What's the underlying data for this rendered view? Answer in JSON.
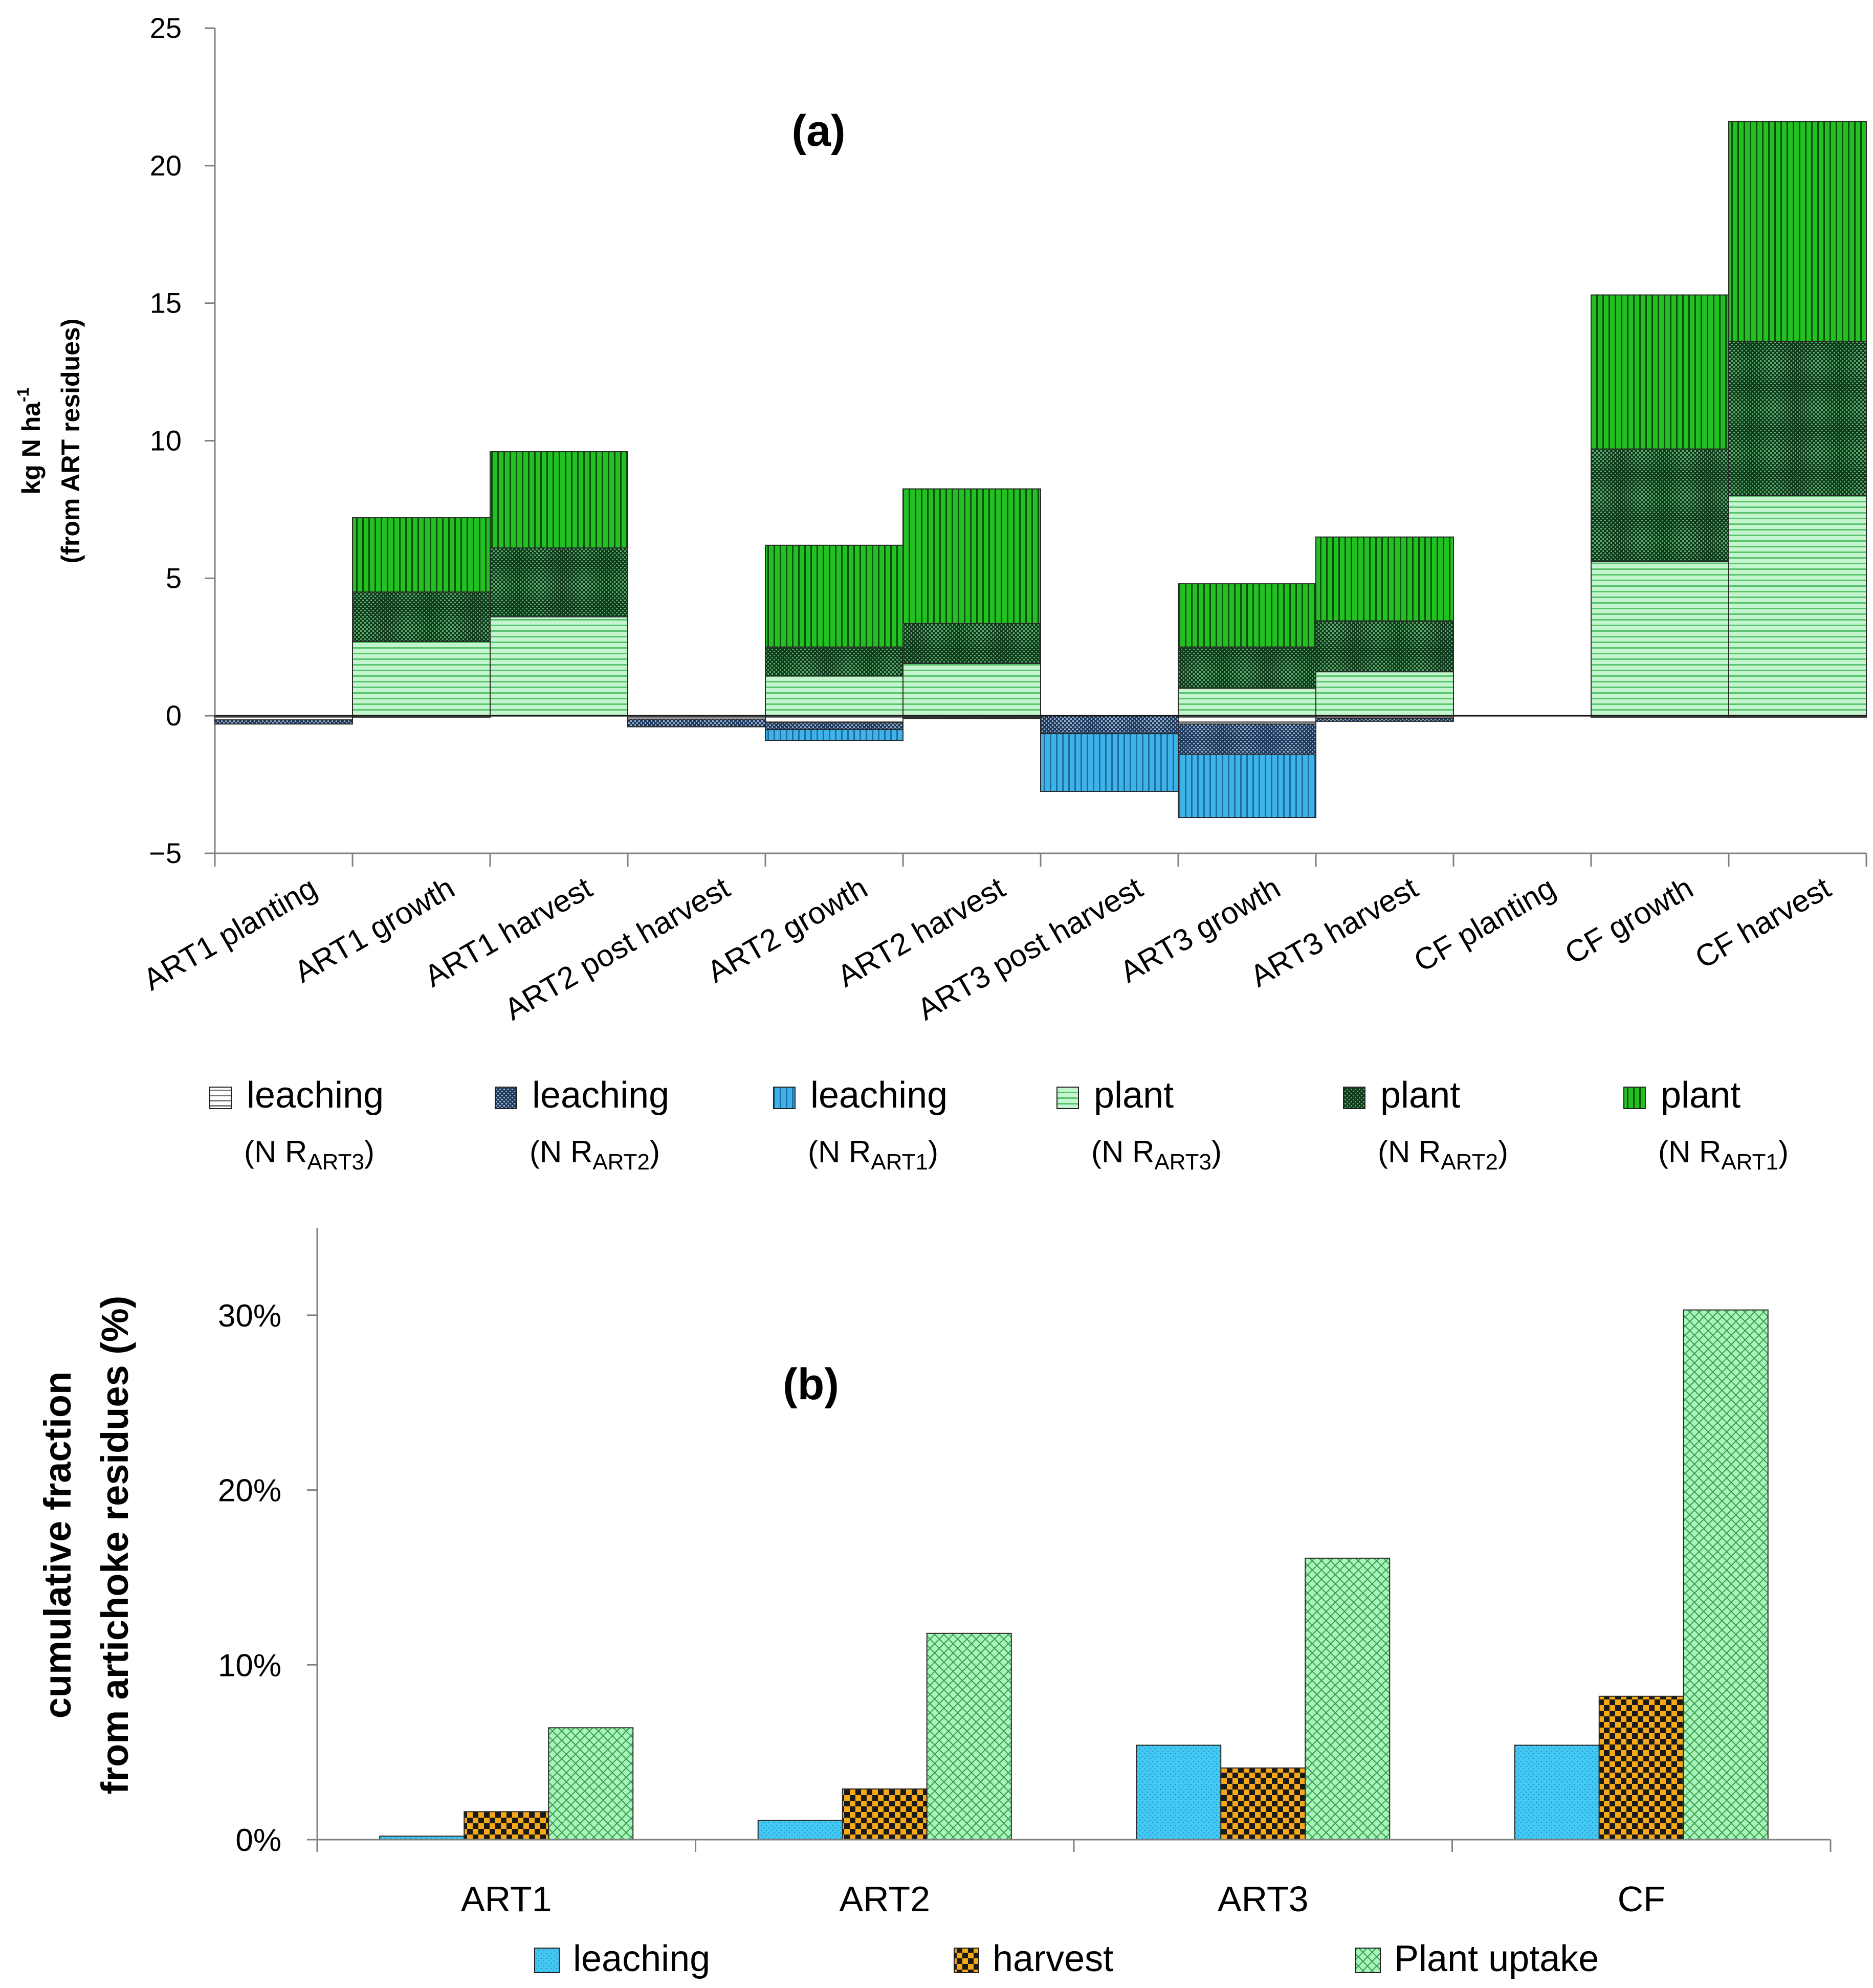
{
  "chart_data": [
    {
      "type": "bar",
      "stacked": true,
      "title": "(a)",
      "ylabel_lines": [
        "kg N ha",
        "(from ART residues)"
      ],
      "ylabel_sup": "-1",
      "ylim": [
        -5,
        25
      ],
      "yticks": [
        -5,
        0,
        5,
        10,
        15,
        20,
        25
      ],
      "categories": [
        "ART1 planting",
        "ART1 growth",
        "ART1 harvest",
        "ART2 post harvest",
        "ART2 growth",
        "ART2 harvest",
        "ART3 post harvest",
        "ART3 growth",
        "ART3 harvest",
        "CF planting",
        "CF growth",
        "CF harvest"
      ],
      "series": [
        {
          "name": "leaching (N R_ART3)",
          "label": "leaching",
          "sub_prefix": "(N R",
          "sub": "ART3",
          "sub_suffix": ")",
          "fill": "#ffffff",
          "pattern": "hlines-gray",
          "values": [
            -0.15,
            -0.05,
            0,
            -0.12,
            -0.25,
            -0.05,
            0,
            -0.3,
            -0.1,
            0,
            -0.05,
            -0.05
          ]
        },
        {
          "name": "leaching (N R_ART2)",
          "label": "leaching",
          "sub_prefix": "(N R",
          "sub": "ART2",
          "sub_suffix": ")",
          "fill": "#1e3a5f",
          "pattern": "dots-dark",
          "values": [
            -0.15,
            0,
            0,
            -0.28,
            -0.25,
            -0.05,
            -0.65,
            -1.1,
            -0.1,
            0,
            0,
            0
          ]
        },
        {
          "name": "leaching (N R_ART1)",
          "label": "leaching",
          "sub_prefix": "(N R",
          "sub": "ART1",
          "sub_suffix": ")",
          "fill": "#2fa8e0",
          "pattern": "vlines-blue",
          "values": [
            0,
            0,
            0,
            0,
            -0.4,
            0,
            -2.1,
            -2.3,
            0,
            0,
            0,
            0
          ]
        },
        {
          "name": "plant (N R_ART3)",
          "label": "plant",
          "sub_prefix": "(N R",
          "sub": "ART3",
          "sub_suffix": ")",
          "fill": "#b9f2c4",
          "pattern": "hlines-green",
          "values": [
            0,
            2.7,
            3.6,
            0,
            1.45,
            1.9,
            0,
            1.0,
            1.6,
            0,
            5.6,
            8.0
          ]
        },
        {
          "name": "plant (N R_ART2)",
          "label": "plant",
          "sub_prefix": "(N R",
          "sub": "ART2",
          "sub_suffix": ")",
          "fill": "#123d1f",
          "pattern": "dots-green",
          "values": [
            0,
            1.8,
            2.5,
            0,
            1.05,
            1.45,
            0,
            1.5,
            1.85,
            0,
            4.1,
            5.6
          ]
        },
        {
          "name": "plant (N R_ART1)",
          "label": "plant",
          "sub_prefix": "(N R",
          "sub": "ART1",
          "sub_suffix": ")",
          "fill": "#1cb51c",
          "pattern": "vlines-green",
          "values": [
            0,
            2.7,
            3.5,
            0,
            3.7,
            4.9,
            0,
            2.3,
            3.05,
            0,
            5.6,
            8.0
          ]
        }
      ]
    },
    {
      "type": "bar",
      "title": "(b)",
      "ylabel_lines": [
        "cumulative  fraction",
        "from  artichoke  residues  (%)"
      ],
      "ylim": [
        0,
        0.35
      ],
      "yticks": [
        0,
        0.1,
        0.2,
        0.3
      ],
      "ytick_labels": [
        "0%",
        "10%",
        "20%",
        "30%"
      ],
      "categories": [
        "ART1",
        "ART2",
        "ART3",
        "CF"
      ],
      "series": [
        {
          "name": "leaching",
          "fill": "#3fc6f2",
          "pattern": "dots-blue",
          "values": [
            0.002,
            0.011,
            0.054,
            0.054
          ]
        },
        {
          "name": "harvest",
          "fill": "#f5a514",
          "pattern": "checker",
          "values": [
            0.016,
            0.029,
            0.041,
            0.082
          ]
        },
        {
          "name": "Plant uptake",
          "fill": "#9ef2b0",
          "pattern": "crosshatch",
          "values": [
            0.064,
            0.118,
            0.161,
            0.303
          ]
        }
      ]
    }
  ]
}
